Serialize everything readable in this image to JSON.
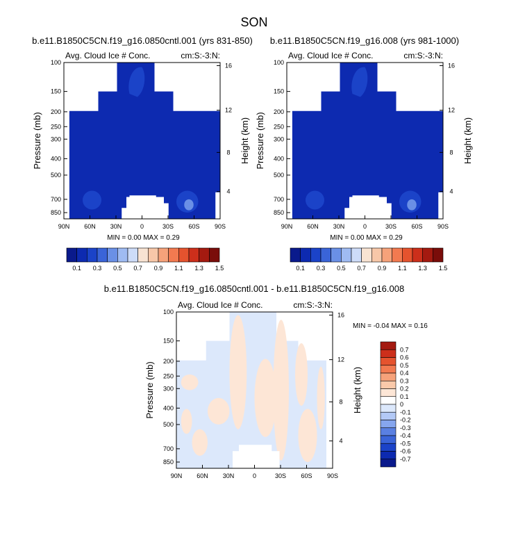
{
  "page": {
    "title": "SON"
  },
  "colors": {
    "frame": "#000000",
    "seq_blue": [
      "#0a1a8c",
      "#0d2ab0",
      "#1b43c8",
      "#3a64d8",
      "#6a90e6",
      "#9fbbf2",
      "#cddcf8",
      "#f8e3d2",
      "#f7c7a8",
      "#f6a27a",
      "#f27a50",
      "#e5532e",
      "#cc2f1b",
      "#a41a10",
      "#7a0d0a"
    ],
    "diff": [
      "#0a1a8c",
      "#0d2ab0",
      "#1b43c8",
      "#3a64d8",
      "#5a80e2",
      "#86a6ee",
      "#b3c9f6",
      "#dce8fb",
      "#ffffff",
      "#fde6d6",
      "#fac9aa",
      "#f6a27a",
      "#f27a50",
      "#e5532e",
      "#cc2f1b",
      "#a41a10"
    ]
  },
  "chart_data": [
    {
      "type": "heatmap",
      "title": "b.e11.B1850C5CN.f19_g16.0850cntl.001 (yrs 831-850)",
      "subtitle_left": "Avg. Cloud Ice # Conc.",
      "subtitle_right": "cm:S:-3:N:",
      "xlabel": "",
      "ylabel": "Pressure (mb)",
      "y2label": "Height (km)",
      "xticks": [
        "90N",
        "60N",
        "30N",
        "0",
        "30S",
        "60S",
        "90S"
      ],
      "yticks": [
        "100",
        "150",
        "200",
        "250",
        "300",
        "400",
        "500",
        "700",
        "850"
      ],
      "y2ticks": [
        "16",
        "12",
        "8",
        "4"
      ],
      "stats": "MIN =   0.00   MAX =   0.29",
      "colorbar_labels": [
        "0.1",
        "0.3",
        "0.5",
        "0.7",
        "0.9",
        "1.1",
        "1.3",
        "1.5"
      ],
      "min": 0.0,
      "max": 0.29
    },
    {
      "type": "heatmap",
      "title": "b.e11.B1850C5CN.f19_g16.008 (yrs 981-1000)",
      "subtitle_left": "Avg. Cloud Ice # Conc.",
      "subtitle_right": "cm:S:-3:N:",
      "xlabel": "",
      "ylabel": "Pressure (mb)",
      "y2label": "Height (km)",
      "xticks": [
        "90N",
        "60N",
        "30N",
        "0",
        "30S",
        "60S",
        "90S"
      ],
      "yticks": [
        "100",
        "150",
        "200",
        "250",
        "300",
        "400",
        "500",
        "700",
        "850"
      ],
      "y2ticks": [
        "16",
        "12",
        "8",
        "4"
      ],
      "stats": "MIN =   0.00   MAX =   0.29",
      "colorbar_labels": [
        "0.1",
        "0.3",
        "0.5",
        "0.7",
        "0.9",
        "1.1",
        "1.3",
        "1.5"
      ],
      "min": 0.0,
      "max": 0.29
    },
    {
      "type": "heatmap",
      "title": "b.e11.B1850C5CN.f19_g16.0850cntl.001 - b.e11.B1850C5CN.f19_g16.008",
      "subtitle_left": "Avg. Cloud Ice # Conc.",
      "subtitle_right": "cm:S:-3:N:",
      "xlabel": "",
      "ylabel": "Pressure (mb)",
      "y2label": "Height (km)",
      "xticks": [
        "90N",
        "60N",
        "30N",
        "0",
        "30S",
        "60S",
        "90S"
      ],
      "yticks": [
        "100",
        "150",
        "200",
        "250",
        "300",
        "400",
        "500",
        "700",
        "850"
      ],
      "y2ticks": [
        "16",
        "12",
        "8",
        "4"
      ],
      "stats": "MIN = -0.04  MAX =  0.16",
      "colorbar_labels": [
        "0.7",
        "0.6",
        "0.5",
        "0.4",
        "0.3",
        "0.2",
        "0.1",
        "0",
        "-0.1",
        "-0.2",
        "-0.3",
        "-0.4",
        "-0.5",
        "-0.6",
        "-0.7"
      ],
      "min": -0.04,
      "max": 0.16
    }
  ]
}
